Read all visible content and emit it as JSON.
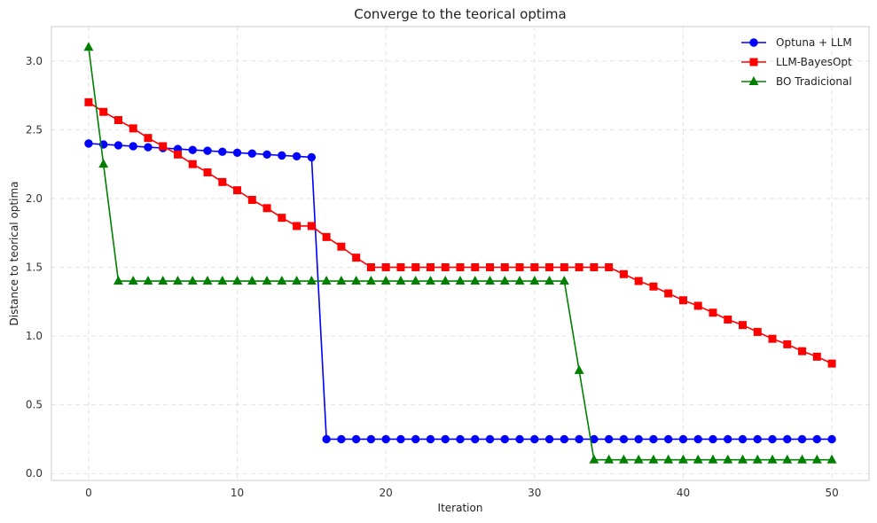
{
  "chart_data": {
    "type": "line",
    "title": "Converge to the teorical optima",
    "xlabel": "Iteration",
    "ylabel": "Distance to teorical optima",
    "xlim": [
      -2.5,
      52.5
    ],
    "ylim": [
      -0.05,
      3.25
    ],
    "xticks": [
      0,
      10,
      20,
      30,
      40,
      50
    ],
    "yticks": [
      0.0,
      0.5,
      1.0,
      1.5,
      2.0,
      2.5,
      3.0
    ],
    "grid": true,
    "legend_position": "top-right",
    "series": [
      {
        "name": "Optuna + LLM",
        "color": "#0000ff",
        "marker": "circle",
        "x": [
          0,
          1,
          2,
          3,
          4,
          5,
          6,
          7,
          8,
          9,
          10,
          11,
          12,
          13,
          14,
          15,
          16,
          17,
          18,
          19,
          20,
          21,
          22,
          23,
          24,
          25,
          26,
          27,
          28,
          29,
          30,
          31,
          32,
          33,
          34,
          35,
          36,
          37,
          38,
          39,
          40,
          41,
          42,
          43,
          44,
          45,
          46,
          47,
          48,
          49,
          50
        ],
        "values": [
          2.4,
          2.393,
          2.387,
          2.38,
          2.373,
          2.367,
          2.36,
          2.353,
          2.347,
          2.34,
          2.333,
          2.327,
          2.32,
          2.313,
          2.307,
          2.3,
          0.25,
          0.25,
          0.25,
          0.25,
          0.25,
          0.25,
          0.25,
          0.25,
          0.25,
          0.25,
          0.25,
          0.25,
          0.25,
          0.25,
          0.25,
          0.25,
          0.25,
          0.25,
          0.25,
          0.25,
          0.25,
          0.25,
          0.25,
          0.25,
          0.25,
          0.25,
          0.25,
          0.25,
          0.25,
          0.25,
          0.25,
          0.25,
          0.25,
          0.25,
          0.25
        ]
      },
      {
        "name": "LLM-BayesOpt",
        "color": "#ff0000",
        "marker": "square",
        "x": [
          0,
          1,
          2,
          3,
          4,
          5,
          6,
          7,
          8,
          9,
          10,
          11,
          12,
          13,
          14,
          15,
          16,
          17,
          18,
          19,
          20,
          21,
          22,
          23,
          24,
          25,
          26,
          27,
          28,
          29,
          30,
          31,
          32,
          33,
          34,
          35,
          36,
          37,
          38,
          39,
          40,
          41,
          42,
          43,
          44,
          45,
          46,
          47,
          48,
          49,
          50
        ],
        "values": [
          2.7,
          2.63,
          2.57,
          2.51,
          2.44,
          2.38,
          2.32,
          2.25,
          2.19,
          2.12,
          2.06,
          1.99,
          1.93,
          1.86,
          1.8,
          1.8,
          1.72,
          1.65,
          1.57,
          1.5,
          1.5,
          1.5,
          1.5,
          1.5,
          1.5,
          1.5,
          1.5,
          1.5,
          1.5,
          1.5,
          1.5,
          1.5,
          1.5,
          1.5,
          1.5,
          1.5,
          1.45,
          1.4,
          1.36,
          1.31,
          1.26,
          1.22,
          1.17,
          1.12,
          1.08,
          1.03,
          0.98,
          0.94,
          0.89,
          0.85,
          0.8
        ]
      },
      {
        "name": "BO Tradicional",
        "color": "#008000",
        "marker": "triangle",
        "x": [
          0,
          1,
          2,
          3,
          4,
          5,
          6,
          7,
          8,
          9,
          10,
          11,
          12,
          13,
          14,
          15,
          16,
          17,
          18,
          19,
          20,
          21,
          22,
          23,
          24,
          25,
          26,
          27,
          28,
          29,
          30,
          31,
          32,
          33,
          34,
          35,
          36,
          37,
          38,
          39,
          40,
          41,
          42,
          43,
          44,
          45,
          46,
          47,
          48,
          49,
          50
        ],
        "values": [
          3.1,
          2.25,
          1.4,
          1.4,
          1.4,
          1.4,
          1.4,
          1.4,
          1.4,
          1.4,
          1.4,
          1.4,
          1.4,
          1.4,
          1.4,
          1.4,
          1.4,
          1.4,
          1.4,
          1.4,
          1.4,
          1.4,
          1.4,
          1.4,
          1.4,
          1.4,
          1.4,
          1.4,
          1.4,
          1.4,
          1.4,
          1.4,
          1.4,
          0.75,
          0.1,
          0.1,
          0.1,
          0.1,
          0.1,
          0.1,
          0.1,
          0.1,
          0.1,
          0.1,
          0.1,
          0.1,
          0.1,
          0.1,
          0.1,
          0.1,
          0.1
        ]
      }
    ]
  }
}
